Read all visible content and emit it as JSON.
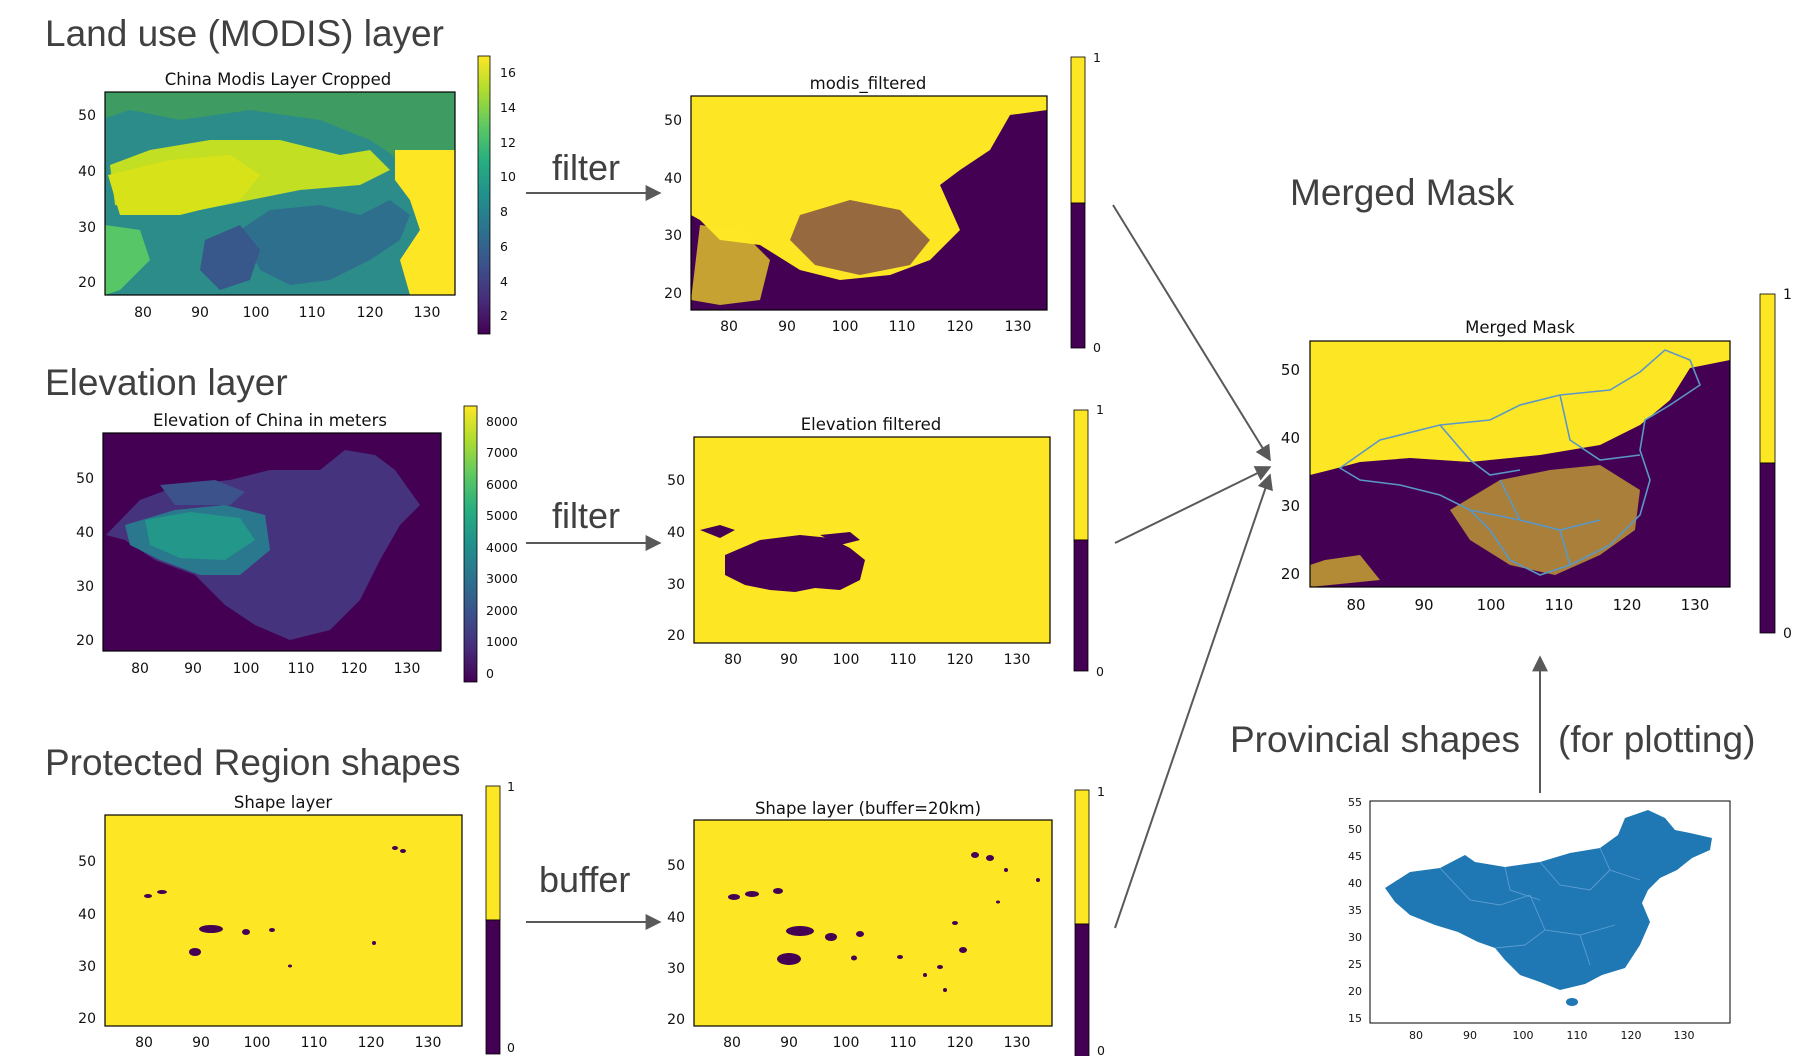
{
  "colors": {
    "viridis_dark": "#440154",
    "viridis_yellow": "#fde725",
    "map_blue": "#1f77b4",
    "arrow": "#595959"
  },
  "sections": {
    "land_use": "Land use (MODIS)  layer",
    "elevation": "Elevation layer",
    "protected": "Protected Region shapes",
    "merged_heading": "Merged Mask",
    "provincial": "Provincial shapes",
    "provincial_note": "(for plotting)"
  },
  "operations": {
    "filter1": "filter",
    "filter2": "filter",
    "buffer": "buffer"
  },
  "panels": {
    "modis": {
      "title": "China Modis Layer Cropped",
      "xticks": [
        "80",
        "90",
        "100",
        "110",
        "120",
        "130"
      ],
      "yticks": [
        "50",
        "40",
        "30",
        "20"
      ],
      "colorbar": [
        "16",
        "14",
        "12",
        "10",
        "8",
        "6",
        "4",
        "2"
      ]
    },
    "modis_filtered": {
      "title": "modis_filtered",
      "xticks": [
        "80",
        "90",
        "100",
        "110",
        "120",
        "130"
      ],
      "yticks": [
        "50",
        "40",
        "30",
        "20"
      ],
      "colorbar": [
        "1",
        "0"
      ]
    },
    "elevation": {
      "title": "Elevation of China in meters",
      "xticks": [
        "80",
        "90",
        "100",
        "110",
        "120",
        "130"
      ],
      "yticks": [
        "50",
        "40",
        "30",
        "20"
      ],
      "colorbar": [
        "8000",
        "7000",
        "6000",
        "5000",
        "4000",
        "3000",
        "2000",
        "1000",
        "0"
      ]
    },
    "elevation_filtered": {
      "title": "Elevation filtered",
      "xticks": [
        "80",
        "90",
        "100",
        "110",
        "120",
        "130"
      ],
      "yticks": [
        "50",
        "40",
        "30",
        "20"
      ],
      "colorbar": [
        "1",
        "0"
      ]
    },
    "shape": {
      "title": "Shape layer",
      "xticks": [
        "80",
        "90",
        "100",
        "110",
        "120",
        "130"
      ],
      "yticks": [
        "50",
        "40",
        "30",
        "20"
      ],
      "colorbar": [
        "1",
        "0"
      ]
    },
    "shape_buffer": {
      "title": "Shape layer (buffer=20km)",
      "xticks": [
        "80",
        "90",
        "100",
        "110",
        "120",
        "130"
      ],
      "yticks": [
        "50",
        "40",
        "30",
        "20"
      ],
      "colorbar": [
        "1",
        "0"
      ]
    },
    "merged": {
      "title": "Merged Mask",
      "xticks": [
        "80",
        "90",
        "100",
        "110",
        "120",
        "130"
      ],
      "yticks": [
        "50",
        "40",
        "30",
        "20"
      ],
      "colorbar": [
        "1",
        "0"
      ]
    },
    "provinces": {
      "xticks": [
        "80",
        "90",
        "100",
        "110",
        "120",
        "130"
      ],
      "yticks": [
        "55",
        "50",
        "45",
        "40",
        "35",
        "30",
        "25",
        "20",
        "15"
      ]
    }
  }
}
